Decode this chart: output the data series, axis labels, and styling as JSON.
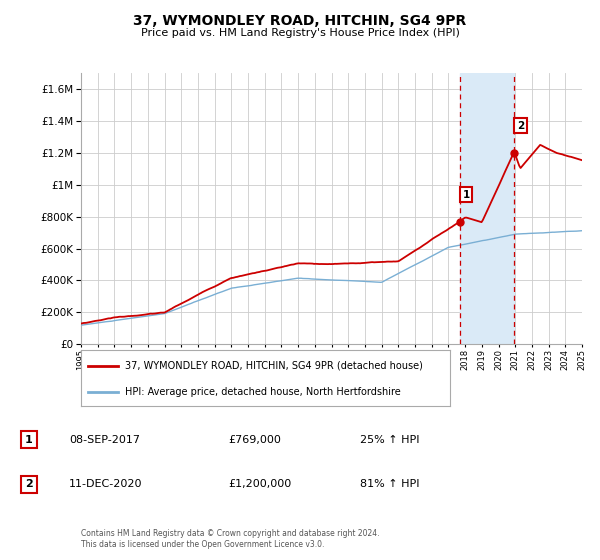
{
  "title": "37, WYMONDLEY ROAD, HITCHIN, SG4 9PR",
  "subtitle": "Price paid vs. HM Land Registry's House Price Index (HPI)",
  "red_label": "37, WYMONDLEY ROAD, HITCHIN, SG4 9PR (detached house)",
  "blue_label": "HPI: Average price, detached house, North Hertfordshire",
  "sale1_date": "08-SEP-2017",
  "sale1_price": "£769,000",
  "sale1_hpi": "25% ↑ HPI",
  "sale1_year": 2017.69,
  "sale1_value": 769000,
  "sale2_date": "11-DEC-2020",
  "sale2_price": "£1,200,000",
  "sale2_hpi": "81% ↑ HPI",
  "sale2_year": 2020.95,
  "sale2_value": 1200000,
  "red_color": "#cc0000",
  "blue_color": "#7aafd4",
  "shaded_color": "#daeaf7",
  "vline_color": "#cc0000",
  "background_color": "#ffffff",
  "grid_color": "#cccccc",
  "ylim": [
    0,
    1700000
  ],
  "yticks": [
    0,
    200000,
    400000,
    600000,
    800000,
    1000000,
    1200000,
    1400000,
    1600000
  ],
  "xlim_start": 1995,
  "xlim_end": 2025,
  "footer": "Contains HM Land Registry data © Crown copyright and database right 2024.\nThis data is licensed under the Open Government Licence v3.0."
}
